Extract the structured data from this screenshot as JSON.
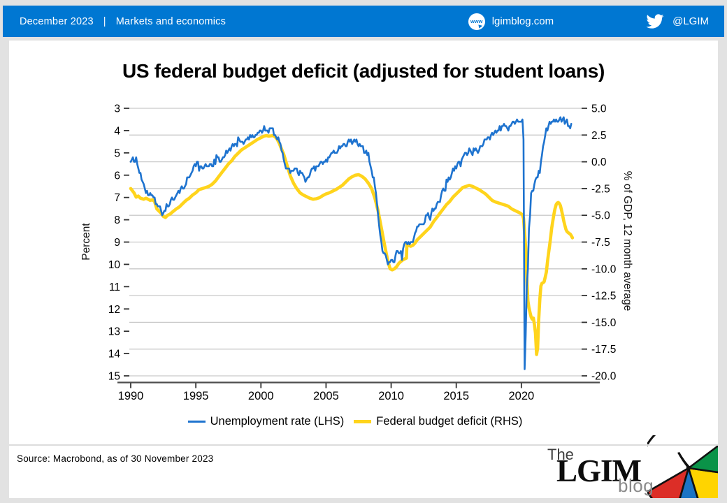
{
  "header": {
    "date": "December 2023",
    "separator": "|",
    "category": "Markets and economics",
    "site": "lgimblog.com",
    "site_icon": "www-globe-icon",
    "twitter_handle": "@LGIM",
    "bar_color": "#0077D2"
  },
  "title": "US federal budget deficit (adjusted for student loans)",
  "chart_data": {
    "type": "line",
    "title": "US federal budget deficit (adjusted for student loans)",
    "grid": "horizontal",
    "legend_position": "bottom",
    "x_axis": {
      "ticks": [
        1990,
        1995,
        2000,
        2005,
        2010,
        2015,
        2020
      ],
      "min": 1990,
      "max": 2024.5
    },
    "left_axis": {
      "label": "Percent",
      "ticks": [
        3,
        4,
        5,
        6,
        7,
        8,
        9,
        10,
        11,
        12,
        13,
        14,
        15
      ],
      "min": 3,
      "max": 15,
      "inverted": true
    },
    "right_axis": {
      "label": "% of GDP, 12 month average",
      "ticks": [
        5.0,
        2.5,
        0.0,
        -2.5,
        -5.0,
        -7.5,
        -10.0,
        -12.5,
        -15.0,
        -17.5,
        -20.0
      ],
      "min": -20,
      "max": 5
    },
    "series": [
      {
        "name": "Unemployment rate (LHS)",
        "axis": "left",
        "color": "#1E73CF",
        "x_start": 1990.0,
        "x_step_months": 1,
        "values": [
          5.4,
          5.3,
          5.2,
          5.4,
          5.4,
          5.2,
          5.5,
          5.7,
          5.9,
          5.9,
          6.2,
          6.3,
          6.4,
          6.6,
          6.8,
          6.7,
          6.9,
          6.9,
          6.8,
          6.9,
          6.9,
          7.0,
          7.0,
          7.3,
          7.3,
          7.4,
          7.4,
          7.4,
          7.6,
          7.8,
          7.7,
          7.6,
          7.6,
          7.3,
          7.4,
          7.4,
          7.3,
          7.1,
          7.0,
          7.1,
          7.1,
          7.0,
          6.9,
          6.8,
          6.7,
          6.8,
          6.6,
          6.5,
          6.6,
          6.6,
          6.5,
          6.4,
          6.1,
          6.1,
          6.1,
          6.0,
          5.9,
          5.8,
          5.6,
          5.5,
          5.6,
          5.4,
          5.4,
          5.8,
          5.6,
          5.6,
          5.7,
          5.7,
          5.6,
          5.5,
          5.6,
          5.6,
          5.6,
          5.5,
          5.5,
          5.6,
          5.6,
          5.3,
          5.5,
          5.1,
          5.2,
          5.2,
          5.4,
          5.4,
          5.3,
          5.2,
          5.2,
          5.1,
          4.9,
          5.0,
          4.9,
          4.8,
          4.9,
          4.7,
          4.6,
          4.7,
          4.6,
          4.6,
          4.7,
          4.3,
          4.4,
          4.5,
          4.5,
          4.5,
          4.6,
          4.5,
          4.4,
          4.4,
          4.3,
          4.4,
          4.2,
          4.3,
          4.2,
          4.3,
          4.3,
          4.2,
          4.2,
          4.1,
          4.1,
          4.0,
          4.0,
          4.1,
          4.0,
          3.8,
          4.0,
          4.0,
          4.0,
          4.1,
          3.9,
          3.9,
          3.9,
          3.9,
          4.2,
          4.2,
          4.3,
          4.4,
          4.3,
          4.5,
          4.6,
          4.9,
          5.0,
          5.3,
          5.5,
          5.7,
          5.7,
          5.7,
          5.7,
          5.9,
          5.8,
          5.8,
          5.8,
          5.7,
          5.7,
          5.7,
          5.9,
          6.0,
          5.8,
          5.9,
          5.9,
          6.0,
          6.1,
          6.3,
          6.2,
          6.1,
          6.1,
          6.0,
          5.8,
          5.7,
          5.7,
          5.6,
          5.8,
          5.6,
          5.6,
          5.6,
          5.5,
          5.4,
          5.4,
          5.5,
          5.4,
          5.4,
          5.3,
          5.4,
          5.2,
          5.2,
          5.1,
          5.0,
          5.0,
          4.9,
          5.0,
          5.0,
          5.0,
          4.9,
          4.7,
          4.8,
          4.7,
          4.7,
          4.6,
          4.6,
          4.7,
          4.7,
          4.5,
          4.4,
          4.5,
          4.4,
          4.6,
          4.5,
          4.4,
          4.5,
          4.4,
          4.6,
          4.7,
          4.6,
          4.7,
          4.7,
          4.7,
          5.0,
          5.0,
          4.9,
          5.1,
          5.0,
          5.4,
          5.6,
          5.8,
          6.1,
          6.1,
          6.5,
          6.8,
          7.3,
          7.8,
          8.3,
          8.7,
          9.0,
          9.4,
          9.5,
          9.5,
          9.6,
          9.8,
          10.0,
          9.9,
          9.9,
          9.8,
          9.8,
          9.9,
          9.9,
          9.6,
          9.4,
          9.4,
          9.5,
          9.5,
          9.4,
          9.8,
          9.3,
          9.1,
          9.0,
          9.0,
          9.1,
          9.0,
          9.1,
          9.0,
          9.0,
          9.0,
          8.8,
          8.6,
          8.5,
          8.3,
          8.3,
          8.2,
          8.2,
          8.2,
          8.2,
          8.2,
          8.1,
          7.8,
          7.8,
          7.7,
          7.9,
          8.0,
          7.7,
          7.5,
          7.6,
          7.5,
          7.5,
          7.3,
          7.2,
          7.2,
          7.2,
          6.9,
          6.7,
          6.6,
          6.7,
          6.7,
          6.2,
          6.3,
          6.1,
          6.2,
          6.1,
          5.9,
          5.7,
          5.8,
          5.6,
          5.7,
          5.5,
          5.4,
          5.4,
          5.6,
          5.3,
          5.2,
          5.1,
          5.0,
          5.0,
          5.1,
          5.0,
          4.8,
          4.9,
          5.0,
          5.1,
          4.8,
          4.9,
          4.8,
          4.9,
          5.0,
          4.9,
          4.7,
          4.7,
          4.7,
          4.6,
          4.4,
          4.4,
          4.4,
          4.3,
          4.3,
          4.4,
          4.2,
          4.1,
          4.2,
          4.1,
          4.0,
          4.1,
          4.0,
          4.0,
          3.8,
          4.0,
          3.8,
          3.8,
          3.7,
          3.8,
          3.8,
          3.9,
          4.0,
          3.8,
          3.8,
          3.7,
          3.6,
          3.6,
          3.7,
          3.6,
          3.5,
          3.6,
          3.6,
          3.6,
          3.6,
          3.5,
          4.4,
          14.7,
          13.2,
          11.0,
          10.2,
          8.4,
          7.8,
          6.8,
          6.7,
          6.7,
          6.4,
          6.2,
          6.1,
          6.1,
          5.8,
          5.9,
          5.4,
          5.1,
          4.7,
          4.5,
          4.2,
          3.9,
          4.0,
          3.8,
          3.6,
          3.7,
          3.6,
          3.6,
          3.5,
          3.6,
          3.5,
          3.6,
          3.6,
          3.5,
          3.4,
          3.6,
          3.5,
          3.4,
          3.7,
          3.6,
          3.5,
          3.8,
          3.8,
          3.9,
          3.7
        ]
      },
      {
        "name": "Federal budget deficit (RHS)",
        "axis": "right",
        "color": "#FFD41C",
        "points": [
          [
            1990.0,
            -2.5
          ],
          [
            1990.25,
            -2.9
          ],
          [
            1990.42,
            -3.3
          ],
          [
            1990.58,
            -3.2
          ],
          [
            1990.75,
            -3.4
          ],
          [
            1991.0,
            -3.5
          ],
          [
            1991.17,
            -3.4
          ],
          [
            1991.33,
            -3.5
          ],
          [
            1991.5,
            -3.6
          ],
          [
            1991.67,
            -3.55
          ],
          [
            1991.83,
            -3.7
          ],
          [
            1992.0,
            -4.4
          ],
          [
            1992.17,
            -4.6
          ],
          [
            1992.33,
            -4.8
          ],
          [
            1992.5,
            -5.1
          ],
          [
            1992.67,
            -5.2
          ],
          [
            1992.83,
            -5.0
          ],
          [
            1993.0,
            -4.9
          ],
          [
            1993.25,
            -4.65
          ],
          [
            1993.5,
            -4.4
          ],
          [
            1993.75,
            -4.2
          ],
          [
            1994.0,
            -3.9
          ],
          [
            1994.25,
            -3.6
          ],
          [
            1994.5,
            -3.4
          ],
          [
            1994.75,
            -3.1
          ],
          [
            1995.0,
            -2.9
          ],
          [
            1995.25,
            -2.6
          ],
          [
            1995.5,
            -2.5
          ],
          [
            1995.75,
            -2.4
          ],
          [
            1996.0,
            -2.3
          ],
          [
            1996.25,
            -2.1
          ],
          [
            1996.5,
            -1.8
          ],
          [
            1996.75,
            -1.4
          ],
          [
            1997.0,
            -1.0
          ],
          [
            1997.25,
            -0.6
          ],
          [
            1997.5,
            -0.2
          ],
          [
            1997.75,
            0.1
          ],
          [
            1998.0,
            0.5
          ],
          [
            1998.25,
            0.8
          ],
          [
            1998.5,
            1.1
          ],
          [
            1998.75,
            1.3
          ],
          [
            1999.0,
            1.5
          ],
          [
            1999.25,
            1.7
          ],
          [
            1999.5,
            1.9
          ],
          [
            1999.75,
            2.1
          ],
          [
            2000.0,
            2.25
          ],
          [
            2000.25,
            2.4
          ],
          [
            2000.42,
            2.45
          ],
          [
            2000.58,
            2.4
          ],
          [
            2000.75,
            2.42
          ],
          [
            2000.92,
            2.45
          ],
          [
            2001.08,
            2.35
          ],
          [
            2001.25,
            2.1
          ],
          [
            2001.42,
            1.7
          ],
          [
            2001.58,
            1.2
          ],
          [
            2001.75,
            0.7
          ],
          [
            2002.0,
            -0.3
          ],
          [
            2002.25,
            -1.3
          ],
          [
            2002.5,
            -2.0
          ],
          [
            2002.75,
            -2.5
          ],
          [
            2003.0,
            -2.9
          ],
          [
            2003.25,
            -3.1
          ],
          [
            2003.5,
            -3.25
          ],
          [
            2003.75,
            -3.4
          ],
          [
            2004.0,
            -3.5
          ],
          [
            2004.25,
            -3.45
          ],
          [
            2004.5,
            -3.35
          ],
          [
            2004.75,
            -3.15
          ],
          [
            2005.0,
            -3.0
          ],
          [
            2005.25,
            -2.9
          ],
          [
            2005.5,
            -2.75
          ],
          [
            2005.75,
            -2.6
          ],
          [
            2006.0,
            -2.4
          ],
          [
            2006.25,
            -2.2
          ],
          [
            2006.5,
            -1.9
          ],
          [
            2006.75,
            -1.6
          ],
          [
            2007.0,
            -1.4
          ],
          [
            2007.25,
            -1.25
          ],
          [
            2007.5,
            -1.2
          ],
          [
            2007.75,
            -1.35
          ],
          [
            2008.0,
            -1.6
          ],
          [
            2008.25,
            -2.0
          ],
          [
            2008.5,
            -2.5
          ],
          [
            2008.75,
            -3.4
          ],
          [
            2009.0,
            -4.6
          ],
          [
            2009.25,
            -6.2
          ],
          [
            2009.5,
            -7.8
          ],
          [
            2009.75,
            -9.3
          ],
          [
            2009.92,
            -10.0
          ],
          [
            2010.08,
            -10.1
          ],
          [
            2010.25,
            -10.0
          ],
          [
            2010.42,
            -9.8
          ],
          [
            2010.58,
            -9.5
          ],
          [
            2010.75,
            -9.3
          ],
          [
            2010.92,
            -9.15
          ],
          [
            2011.08,
            -9.05
          ],
          [
            2011.17,
            -9.0
          ],
          [
            2011.21,
            -7.7
          ],
          [
            2011.33,
            -7.8
          ],
          [
            2011.5,
            -7.9
          ],
          [
            2011.67,
            -7.8
          ],
          [
            2011.83,
            -7.6
          ],
          [
            2012.0,
            -7.3
          ],
          [
            2012.25,
            -7.0
          ],
          [
            2012.5,
            -6.7
          ],
          [
            2012.75,
            -6.4
          ],
          [
            2013.0,
            -6.1
          ],
          [
            2013.25,
            -5.6
          ],
          [
            2013.5,
            -5.2
          ],
          [
            2013.75,
            -4.8
          ],
          [
            2014.0,
            -4.4
          ],
          [
            2014.25,
            -4.0
          ],
          [
            2014.5,
            -3.7
          ],
          [
            2014.75,
            -3.3
          ],
          [
            2015.0,
            -3.0
          ],
          [
            2015.25,
            -2.7
          ],
          [
            2015.5,
            -2.4
          ],
          [
            2015.75,
            -2.3
          ],
          [
            2016.0,
            -2.2
          ],
          [
            2016.25,
            -2.3
          ],
          [
            2016.5,
            -2.45
          ],
          [
            2016.75,
            -2.6
          ],
          [
            2017.0,
            -2.8
          ],
          [
            2017.25,
            -3.0
          ],
          [
            2017.5,
            -3.3
          ],
          [
            2017.75,
            -3.6
          ],
          [
            2018.0,
            -3.75
          ],
          [
            2018.25,
            -3.85
          ],
          [
            2018.5,
            -3.95
          ],
          [
            2018.75,
            -4.05
          ],
          [
            2019.0,
            -4.15
          ],
          [
            2019.25,
            -4.4
          ],
          [
            2019.5,
            -4.55
          ],
          [
            2019.75,
            -4.7
          ],
          [
            2019.92,
            -4.8
          ],
          [
            2020.08,
            -4.95
          ],
          [
            2020.17,
            -5.3
          ],
          [
            2020.33,
            -8.0
          ],
          [
            2020.42,
            -11.0
          ],
          [
            2020.5,
            -13.0
          ],
          [
            2020.58,
            -13.6
          ],
          [
            2020.67,
            -14.1
          ],
          [
            2020.75,
            -14.5
          ],
          [
            2020.83,
            -14.7
          ],
          [
            2020.92,
            -14.6
          ],
          [
            2021.0,
            -15.2
          ],
          [
            2021.08,
            -16.0
          ],
          [
            2021.17,
            -18.0
          ],
          [
            2021.25,
            -17.4
          ],
          [
            2021.33,
            -14.8
          ],
          [
            2021.42,
            -12.8
          ],
          [
            2021.5,
            -11.6
          ],
          [
            2021.58,
            -11.35
          ],
          [
            2021.67,
            -11.3
          ],
          [
            2021.75,
            -11.2
          ],
          [
            2021.83,
            -10.8
          ],
          [
            2021.92,
            -10.3
          ],
          [
            2022.0,
            -9.4
          ],
          [
            2022.08,
            -8.6
          ],
          [
            2022.17,
            -7.8
          ],
          [
            2022.25,
            -7.0
          ],
          [
            2022.33,
            -6.2
          ],
          [
            2022.42,
            -5.5
          ],
          [
            2022.5,
            -4.9
          ],
          [
            2022.58,
            -4.4
          ],
          [
            2022.67,
            -4.0
          ],
          [
            2022.75,
            -3.85
          ],
          [
            2022.83,
            -3.8
          ],
          [
            2022.92,
            -3.9
          ],
          [
            2023.0,
            -4.1
          ],
          [
            2023.08,
            -4.5
          ],
          [
            2023.17,
            -5.0
          ],
          [
            2023.25,
            -5.5
          ],
          [
            2023.33,
            -5.9
          ],
          [
            2023.42,
            -6.3
          ],
          [
            2023.5,
            -6.5
          ],
          [
            2023.58,
            -6.6
          ],
          [
            2023.67,
            -6.7
          ],
          [
            2023.75,
            -6.75
          ],
          [
            2023.83,
            -6.9
          ],
          [
            2023.92,
            -7.1
          ]
        ]
      }
    ]
  },
  "footer": {
    "source": "Source: Macrobond, as of 30 November 2023"
  },
  "logo": {
    "the": "The",
    "main": "LGIM",
    "blog": "blog"
  },
  "colors": {
    "page_bg": "#e2e2e2",
    "card_bg": "#ffffff",
    "grid": "#c9c9c9",
    "axis_line": "#4d4d4d",
    "umbrella_red": "#DC2E27",
    "umbrella_green": "#0A9348",
    "umbrella_blue": "#1B74C5",
    "umbrella_yellow": "#FFD400"
  }
}
